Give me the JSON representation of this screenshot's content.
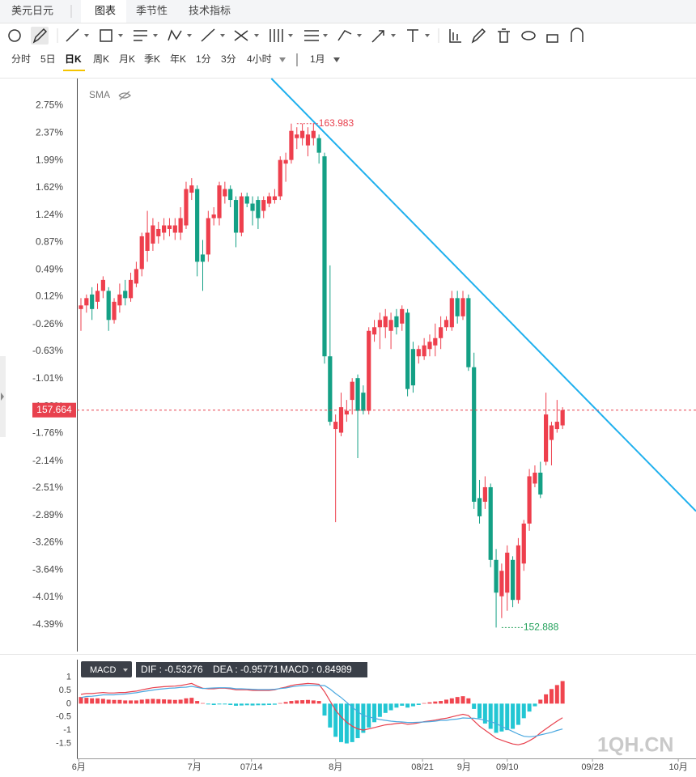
{
  "ui": {
    "tabs": [
      "美元日元",
      "图表",
      "季节性",
      "技术指标"
    ],
    "active_tab": 1,
    "periods": [
      "分时",
      "5日",
      "日K",
      "周K",
      "月K",
      "季K",
      "年K",
      "1分",
      "3分",
      "4小时"
    ],
    "active_period": 2,
    "range": "1月",
    "indicator": "SMA",
    "macd_label": "MACD",
    "watermark": "1QH.CN"
  },
  "chart_data": [
    {
      "type": "candlestick",
      "up_color": "#ee3f4d",
      "down_color": "#14a085",
      "open": [
        -0.05,
        0.0,
        0.15,
        0.05,
        0.2,
        0.2,
        -0.2,
        0.0,
        0.2,
        0.1,
        0.3,
        0.5,
        0.75,
        0.85,
        0.95,
        1.0,
        1.05,
        1.0,
        1.0,
        1.1,
        1.55,
        1.6,
        0.7,
        0.7,
        1.2,
        1.2,
        1.5,
        1.6,
        1.45,
        1.0,
        1.5,
        1.4,
        1.45,
        1.3,
        1.4,
        1.45,
        1.5,
        1.95,
        2.0,
        2.3,
        2.3,
        2.2,
        2.3,
        2.3,
        2.05,
        -0.7,
        -1.7,
        -1.75,
        -1.5,
        -1.3,
        -1.0,
        -1.2,
        -1.45,
        -0.4,
        -0.3,
        -0.3,
        -0.35,
        -0.15,
        -0.25,
        -0.1,
        -0.6,
        -0.7,
        -0.7,
        -0.6,
        -0.55,
        -0.45,
        -0.3,
        -0.3,
        0.1,
        -0.15,
        0.1,
        -0.85,
        -2.65,
        -2.7,
        -2.5,
        -3.5,
        -4.0,
        -3.95,
        -3.5,
        -4.05,
        -3.55,
        -3.0,
        -2.45,
        -2.3,
        -2.15,
        -1.85,
        -1.7,
        -1.65
      ],
      "high": [
        0.1,
        0.15,
        0.25,
        0.3,
        0.4,
        0.25,
        0.1,
        0.3,
        0.35,
        0.45,
        0.6,
        1.0,
        1.3,
        1.2,
        1.15,
        1.2,
        1.2,
        1.2,
        1.35,
        1.7,
        1.75,
        1.65,
        0.9,
        1.3,
        1.35,
        1.7,
        1.7,
        1.65,
        1.5,
        1.55,
        1.55,
        1.5,
        1.5,
        1.5,
        1.55,
        1.6,
        2.05,
        2.1,
        2.5,
        2.45,
        2.5,
        2.45,
        2.5,
        2.35,
        2.1,
        0.55,
        -1.5,
        -1.2,
        -1.3,
        -1.0,
        -0.95,
        -1.1,
        -0.3,
        -0.2,
        -0.1,
        -0.05,
        -0.1,
        -0.05,
        0.0,
        -0.05,
        -0.5,
        -0.55,
        -0.45,
        -0.4,
        -0.25,
        -0.15,
        -0.15,
        0.2,
        0.2,
        0.2,
        0.15,
        -0.65,
        -2.4,
        -2.35,
        -2.45,
        -3.35,
        -3.55,
        -3.3,
        -3.45,
        -3.2,
        -2.95,
        -2.25,
        -2.2,
        -2.15,
        -1.2,
        -1.6,
        -1.3,
        -1.4
      ],
      "low": [
        -0.35,
        -0.1,
        -0.2,
        -0.05,
        0.1,
        -0.35,
        -0.25,
        -0.1,
        0.0,
        0.05,
        0.25,
        0.4,
        0.6,
        0.75,
        0.85,
        0.9,
        0.95,
        0.9,
        0.9,
        1.05,
        1.45,
        0.4,
        0.2,
        0.6,
        1.1,
        1.1,
        1.4,
        1.35,
        0.8,
        0.95,
        1.35,
        1.1,
        1.05,
        1.2,
        1.35,
        1.4,
        1.45,
        1.7,
        1.95,
        2.15,
        2.2,
        2.05,
        2.2,
        1.95,
        -0.8,
        -1.65,
        -2.98,
        -1.8,
        -1.6,
        -1.5,
        -2.1,
        -1.5,
        -1.5,
        -0.5,
        -0.6,
        -0.45,
        -0.6,
        -0.4,
        -0.35,
        -1.25,
        -1.2,
        -0.8,
        -0.75,
        -0.7,
        -0.7,
        -0.6,
        -0.35,
        -0.35,
        -0.25,
        -0.2,
        -0.9,
        -2.8,
        -3.0,
        -2.8,
        -3.6,
        -4.43,
        -4.3,
        -4.2,
        -4.15,
        -4.1,
        -3.65,
        -3.1,
        -2.5,
        -2.65,
        -2.2,
        -2.2,
        -1.75,
        -1.7
      ],
      "close": [
        0.0,
        0.1,
        -0.05,
        0.2,
        0.35,
        -0.2,
        0.05,
        0.15,
        0.1,
        0.35,
        0.5,
        0.95,
        1.0,
        1.1,
        1.05,
        1.1,
        1.1,
        1.1,
        1.2,
        1.6,
        1.65,
        0.6,
        0.6,
        1.2,
        1.25,
        1.65,
        1.6,
        1.45,
        1.0,
        1.5,
        1.4,
        1.3,
        1.2,
        1.45,
        1.5,
        1.5,
        2.0,
        2.0,
        2.4,
        2.35,
        2.4,
        2.35,
        2.4,
        2.1,
        -0.7,
        -1.6,
        -1.6,
        -1.4,
        -1.45,
        -1.05,
        -1.45,
        -1.45,
        -0.35,
        -0.3,
        -0.2,
        -0.15,
        -0.2,
        -0.3,
        -0.05,
        -1.15,
        -1.1,
        -0.6,
        -0.55,
        -0.5,
        -0.45,
        -0.3,
        -0.2,
        0.1,
        -0.15,
        0.1,
        -0.85,
        -2.7,
        -2.9,
        -2.5,
        -3.5,
        -3.95,
        -3.65,
        -3.4,
        -4.05,
        -3.3,
        -3.0,
        -2.35,
        -2.3,
        -2.6,
        -1.5,
        -1.65,
        -1.6,
        -1.44
      ],
      "xlim": [
        -0.73,
        111.1
      ],
      "ylim": [
        -4.76,
        3.12
      ],
      "yticks": [
        {
          "value": 2.75,
          "label": "2.75%"
        },
        {
          "value": 2.37,
          "label": "2.37%"
        },
        {
          "value": 1.99,
          "label": "1.99%"
        },
        {
          "value": 1.62,
          "label": "1.62%"
        },
        {
          "value": 1.24,
          "label": "1.24%"
        },
        {
          "value": 0.87,
          "label": "0.87%"
        },
        {
          "value": 0.49,
          "label": "0.49%"
        },
        {
          "value": 0.12,
          "label": "0.12%"
        },
        {
          "value": -0.26,
          "label": "-0.26%"
        },
        {
          "value": -0.63,
          "label": "-0.63%"
        },
        {
          "value": -1.01,
          "label": "-1.01%"
        },
        {
          "value": -1.39,
          "label": "-1.39%"
        },
        {
          "value": -1.76,
          "label": "-1.76%"
        },
        {
          "value": -2.14,
          "label": "-2.14%"
        },
        {
          "value": -2.51,
          "label": "-2.51%"
        },
        {
          "value": -2.89,
          "label": "-2.89%"
        },
        {
          "value": -3.26,
          "label": "-3.26%"
        },
        {
          "value": -3.64,
          "label": "-3.64%"
        },
        {
          "value": -4.01,
          "label": "-4.01%"
        },
        {
          "value": -4.39,
          "label": "-4.39%"
        }
      ],
      "xticks": [
        {
          "value": -0.4,
          "label": "6月"
        },
        {
          "value": 20.5,
          "label": "7月"
        },
        {
          "value": 30.8,
          "label": "07/14"
        },
        {
          "value": 46,
          "label": "8月"
        },
        {
          "value": 61.7,
          "label": "08/21"
        },
        {
          "value": 69.2,
          "label": "9月"
        },
        {
          "value": 77,
          "label": "09/10"
        },
        {
          "value": 92.4,
          "label": "09/28"
        },
        {
          "value": 107.9,
          "label": "10月"
        }
      ],
      "trendline": {
        "color": "#1fb0ee",
        "x": [
          34.4,
          111.1
        ],
        "y": [
          3.12,
          -2.83
        ]
      },
      "annotations": [
        {
          "text": "163.983",
          "x": 39,
          "y": 2.5,
          "color": "#e8414e"
        },
        {
          "text": "152.888",
          "x": 76,
          "y": -4.43,
          "color": "#22a05a"
        }
      ],
      "price_line": {
        "value": -1.44,
        "label": "157.664",
        "color": "#e8414e"
      }
    },
    {
      "type": "macd",
      "ylim": [
        -1.85,
        1.2
      ],
      "yticks": [
        1,
        0.5,
        0,
        -0.5,
        -1,
        -1.5
      ],
      "legend_labels": [
        "DIF : -0.53276",
        "DEA : -0.95771",
        "MACD : 0.84989"
      ],
      "series": [
        {
          "name": "MACD",
          "up_color": "#f0454f",
          "down_color": "#22c6d3",
          "values": [
            0.25,
            0.22,
            0.2,
            0.2,
            0.18,
            0.15,
            0.14,
            0.14,
            0.12,
            0.12,
            0.12,
            0.15,
            0.17,
            0.18,
            0.17,
            0.16,
            0.15,
            0.14,
            0.15,
            0.2,
            0.22,
            0.1,
            0.02,
            -0.03,
            -0.05,
            -0.03,
            -0.03,
            -0.05,
            -0.08,
            -0.07,
            -0.06,
            -0.07,
            -0.06,
            -0.06,
            -0.05,
            -0.04,
            0.02,
            0.06,
            0.1,
            0.12,
            0.13,
            0.14,
            0.12,
            0.1,
            -0.45,
            -0.9,
            -1.25,
            -1.45,
            -1.5,
            -1.45,
            -1.3,
            -1.1,
            -0.9,
            -0.7,
            -0.5,
            -0.35,
            -0.25,
            -0.15,
            -0.08,
            -0.15,
            -0.1,
            -0.05,
            0.02,
            0.05,
            0.08,
            0.1,
            0.15,
            0.2,
            0.25,
            0.28,
            0.2,
            -0.2,
            -0.55,
            -0.75,
            -0.95,
            -1.1,
            -1.05,
            -1.0,
            -0.95,
            -0.8,
            -0.55,
            -0.3,
            -0.1,
            0.15,
            0.35,
            0.55,
            0.7,
            0.84989
          ]
        },
        {
          "name": "DIF",
          "color": "#e8414e",
          "values": [
            0.35,
            0.38,
            0.38,
            0.4,
            0.42,
            0.4,
            0.4,
            0.42,
            0.42,
            0.45,
            0.47,
            0.52,
            0.56,
            0.6,
            0.62,
            0.64,
            0.65,
            0.66,
            0.68,
            0.72,
            0.76,
            0.66,
            0.58,
            0.56,
            0.56,
            0.58,
            0.58,
            0.56,
            0.52,
            0.52,
            0.52,
            0.5,
            0.5,
            0.5,
            0.5,
            0.52,
            0.58,
            0.62,
            0.68,
            0.72,
            0.74,
            0.76,
            0.75,
            0.73,
            0.45,
            0.1,
            -0.25,
            -0.5,
            -0.7,
            -0.85,
            -0.95,
            -1.0,
            -0.95,
            -0.9,
            -0.85,
            -0.8,
            -0.78,
            -0.75,
            -0.73,
            -0.78,
            -0.76,
            -0.72,
            -0.68,
            -0.65,
            -0.62,
            -0.58,
            -0.55,
            -0.5,
            -0.45,
            -0.4,
            -0.45,
            -0.65,
            -0.85,
            -1.0,
            -1.15,
            -1.3,
            -1.38,
            -1.45,
            -1.52,
            -1.55,
            -1.5,
            -1.4,
            -1.28,
            -1.1,
            -0.95,
            -0.8,
            -0.66,
            -0.53276
          ]
        },
        {
          "name": "DEA",
          "color": "#4aa8e0",
          "values": [
            0.23,
            0.27,
            0.28,
            0.3,
            0.33,
            0.33,
            0.33,
            0.35,
            0.36,
            0.39,
            0.41,
            0.45,
            0.48,
            0.51,
            0.54,
            0.56,
            0.58,
            0.59,
            0.61,
            0.62,
            0.65,
            0.61,
            0.57,
            0.58,
            0.59,
            0.6,
            0.6,
            0.59,
            0.56,
            0.56,
            0.55,
            0.54,
            0.53,
            0.53,
            0.53,
            0.54,
            0.57,
            0.59,
            0.63,
            0.66,
            0.68,
            0.69,
            0.69,
            0.68,
            0.68,
            0.55,
            0.38,
            0.23,
            0.05,
            -0.13,
            -0.3,
            -0.45,
            -0.5,
            -0.55,
            -0.6,
            -0.63,
            -0.66,
            -0.68,
            -0.69,
            -0.71,
            -0.71,
            -0.7,
            -0.69,
            -0.68,
            -0.66,
            -0.63,
            -0.63,
            -0.6,
            -0.58,
            -0.54,
            -0.55,
            -0.55,
            -0.58,
            -0.63,
            -0.68,
            -0.75,
            -0.86,
            -0.95,
            -1.05,
            -1.15,
            -1.23,
            -1.25,
            -1.23,
            -1.18,
            -1.13,
            -1.08,
            -1.01,
            -0.95771
          ]
        }
      ]
    }
  ]
}
